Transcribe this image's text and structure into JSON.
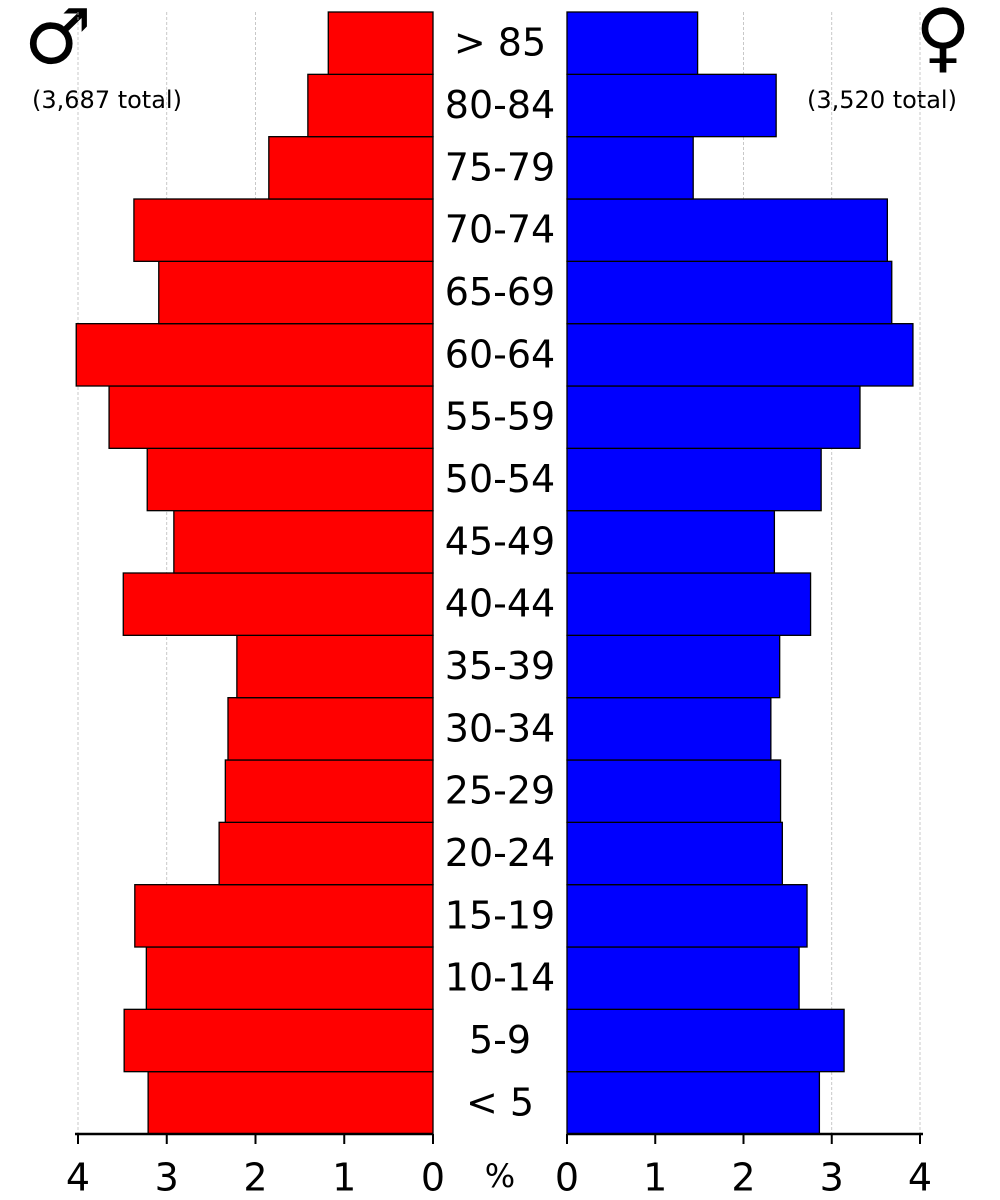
{
  "chart_data": {
    "type": "pyramid",
    "categories": [
      "< 5",
      "5-9",
      "10-14",
      "15-19",
      "20-24",
      "25-29",
      "30-34",
      "35-39",
      "40-44",
      "45-49",
      "50-54",
      "55-59",
      "60-64",
      "65-69",
      "70-74",
      "75-79",
      "80-84",
      "> 85"
    ],
    "series": [
      {
        "name": "♂",
        "color": "#ff0000",
        "total": "(3,687 total)",
        "values": [
          3.21,
          3.48,
          3.23,
          3.36,
          2.41,
          2.34,
          2.31,
          2.21,
          3.49,
          2.92,
          3.22,
          3.65,
          4.02,
          3.09,
          3.37,
          1.85,
          1.41,
          1.18
        ]
      },
      {
        "name": "♀",
        "color": "#0000ff",
        "total": "(3,520 total)",
        "values": [
          2.86,
          3.14,
          2.63,
          2.72,
          2.44,
          2.42,
          2.31,
          2.41,
          2.76,
          2.35,
          2.88,
          3.32,
          3.92,
          3.68,
          3.63,
          1.43,
          2.37,
          1.48
        ]
      }
    ],
    "xlabel": "%",
    "xlim": [
      0,
      4
    ],
    "xticks": [
      0,
      1,
      2,
      3,
      4
    ],
    "grid": true
  }
}
